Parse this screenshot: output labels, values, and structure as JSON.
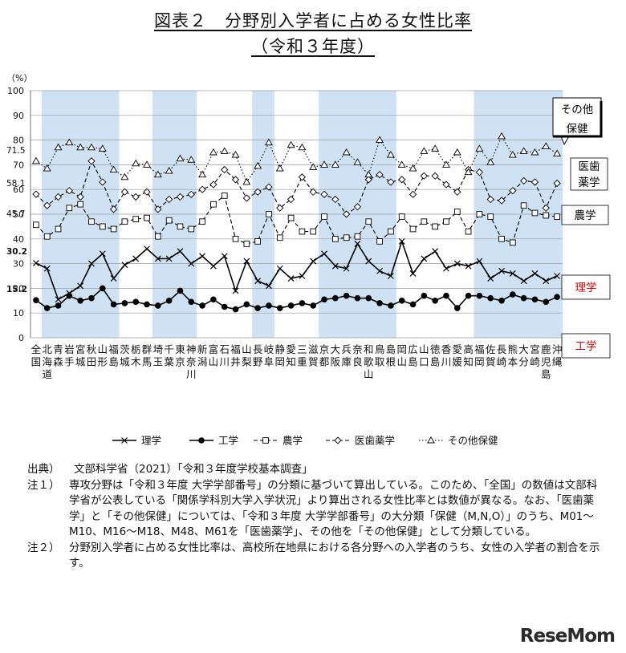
{
  "title_line1": "図表２　分野別入学者に占める女性比率",
  "title_line2": "（令和３年度）",
  "chart_data": {
    "type": "line",
    "ylabel": "（%）",
    "ylim": [
      0,
      100
    ],
    "yticks": [
      0,
      10,
      20,
      30,
      40,
      50,
      60,
      70,
      80,
      90,
      100
    ],
    "categories": [
      [
        "全",
        "国"
      ],
      [
        "北",
        "海",
        "道"
      ],
      [
        "青",
        "森"
      ],
      [
        "岩",
        "手"
      ],
      [
        "宮",
        "城"
      ],
      [
        "秋",
        "田"
      ],
      [
        "山",
        "形"
      ],
      [
        "福",
        "島"
      ],
      [
        "茨",
        "城"
      ],
      [
        "栃",
        "木"
      ],
      [
        "群",
        "馬"
      ],
      [
        "埼",
        "玉"
      ],
      [
        "千",
        "葉"
      ],
      [
        "東",
        "京"
      ],
      [
        "神",
        "奈",
        "川"
      ],
      [
        "新",
        "潟"
      ],
      [
        "富",
        "山"
      ],
      [
        "石",
        "川"
      ],
      [
        "福",
        "井"
      ],
      [
        "山",
        "梨"
      ],
      [
        "長",
        "野"
      ],
      [
        "岐",
        "阜"
      ],
      [
        "静",
        "岡"
      ],
      [
        "愛",
        "知"
      ],
      [
        "三",
        "重"
      ],
      [
        "滋",
        "賀"
      ],
      [
        "京",
        "都"
      ],
      [
        "大",
        "阪"
      ],
      [
        "兵",
        "庫"
      ],
      [
        "奈",
        "良"
      ],
      [
        "和",
        "歌",
        "山"
      ],
      [
        "鳥",
        "取"
      ],
      [
        "島",
        "根"
      ],
      [
        "岡",
        "山"
      ],
      [
        "広",
        "島"
      ],
      [
        "山",
        "口"
      ],
      [
        "徳",
        "島"
      ],
      [
        "香",
        "川"
      ],
      [
        "愛",
        "媛"
      ],
      [
        "高",
        "知"
      ],
      [
        "福",
        "岡"
      ],
      [
        "佐",
        "賀"
      ],
      [
        "長",
        "崎"
      ],
      [
        "熊",
        "本"
      ],
      [
        "大",
        "分"
      ],
      [
        "宮",
        "崎"
      ],
      [
        "鹿",
        "児",
        "島"
      ],
      [
        "沖",
        "縄"
      ]
    ],
    "shaded_bands": [
      [
        1,
        7
      ],
      [
        11,
        14
      ],
      [
        20,
        21
      ],
      [
        26,
        32
      ],
      [
        40,
        47
      ]
    ],
    "series": [
      {
        "name": "理学",
        "marker": "x",
        "dash": "solid",
        "values": [
          30.2,
          28,
          15.5,
          18,
          21,
          30,
          34,
          24,
          29.5,
          32,
          36,
          32,
          32,
          35,
          30,
          33,
          29,
          33,
          19,
          31,
          23,
          21,
          28,
          24,
          25,
          31,
          34,
          29,
          28,
          38,
          31,
          27,
          25,
          39,
          26,
          32,
          35,
          28,
          30,
          29,
          31,
          24,
          27,
          26,
          23,
          26,
          23,
          25
        ]
      },
      {
        "name": "工学",
        "marker": "dot",
        "dash": "solid",
        "values": [
          15.2,
          12,
          13,
          17,
          15,
          16,
          20,
          13.5,
          14,
          14.5,
          13.5,
          13,
          15,
          19,
          14.5,
          13,
          15.5,
          12.5,
          11.5,
          13.5,
          12,
          13,
          12,
          13,
          14,
          13,
          15.5,
          16,
          17,
          16,
          16,
          14,
          13,
          15,
          13.5,
          17,
          15,
          17,
          12,
          17,
          17,
          16,
          15,
          17.5,
          16,
          15.5,
          14.5,
          16.5
        ]
      },
      {
        "name": "農学",
        "marker": "square",
        "dash": "dash",
        "values": [
          45.7,
          41,
          44,
          52.5,
          54,
          47,
          45,
          44,
          47,
          48,
          48.5,
          41,
          47.5,
          45,
          44,
          47,
          54,
          57.5,
          40,
          38,
          39,
          50,
          40.5,
          48.5,
          43,
          43,
          49,
          40,
          40.5,
          41,
          47,
          39,
          43,
          49,
          44,
          47,
          45,
          47,
          51,
          43,
          50,
          49,
          40,
          38.5,
          53.5,
          50.5,
          49.5,
          49
        ]
      },
      {
        "name": "医歯薬学",
        "marker": "diamond",
        "dash": "dash",
        "values": [
          58.1,
          53.5,
          57,
          59.5,
          57,
          71.5,
          63,
          52,
          59,
          57,
          59,
          52,
          56,
          57,
          58,
          60,
          62,
          68,
          64,
          56.5,
          59,
          61,
          52.5,
          56,
          65,
          59,
          58,
          56,
          50,
          53,
          64,
          66,
          63,
          64,
          58,
          65.5,
          65.5,
          62,
          59,
          68,
          67,
          56,
          55.5,
          59.5,
          63.5,
          63,
          52.5,
          62.5
        ]
      },
      {
        "name": "その他保健",
        "marker": "triangle",
        "dash": "dot",
        "values": [
          71.5,
          68.5,
          77,
          79,
          77,
          77,
          76.5,
          68,
          65,
          70.5,
          70,
          66,
          67.5,
          72.5,
          72,
          66,
          75,
          75.5,
          74,
          63,
          69.5,
          79,
          68.5,
          78,
          77,
          69,
          70,
          70,
          75,
          71,
          66,
          80,
          74,
          70,
          68.5,
          75.5,
          76.5,
          70,
          75,
          67,
          76.5,
          71,
          81.5,
          74,
          75.5,
          75,
          77.5,
          74.5
        ]
      }
    ],
    "callouts": [
      {
        "text": "その他\n保健",
        "color": "#000000"
      },
      {
        "text": "医歯\n薬学",
        "color": "#000000"
      },
      {
        "text": "農学",
        "color": "#000000"
      },
      {
        "text": "理学",
        "color": "#e00000"
      },
      {
        "text": "工学",
        "color": "#e00000"
      }
    ],
    "value_labels": [
      "71.5",
      "58.1",
      "45.7",
      "30.2",
      "15.2"
    ],
    "band_color": "#cfe2f3"
  },
  "notes": [
    {
      "label": "出典）",
      "text": "文部科学省（2021）「令和３年度学校基本調査」"
    },
    {
      "label": "注１）",
      "text": "専攻分野は「令和３年度 大学学部番号」の分類に基づいて算出している。このため、「全国」の数値は文部科学省が公表している「関係学科別大学入学状況」より算出される女性比率とは数値が異なる。なお、「医歯薬学」と「その他保健」については、「令和３年度 大学学部番号」の大分類「保健（M,N,O）」のうち、M01〜M10、M16〜M18、M48、M61を「医歯薬学」、その他を「その他保健」として分類している。"
    },
    {
      "label": "注２）",
      "text": "分野別入学者に占める女性比率は、高校所在地県における各分野への入学者のうち、女性の入学者の割合を示す。"
    }
  ],
  "watermark": "ReseMom"
}
